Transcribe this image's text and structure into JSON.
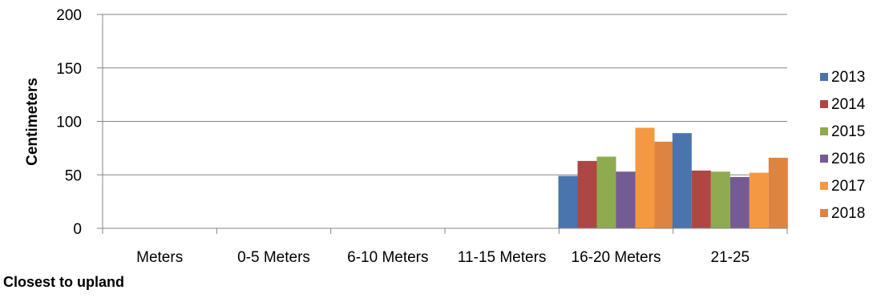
{
  "chart_data": {
    "type": "bar",
    "ylabel": "Centimeters",
    "ylim": [
      0,
      200
    ],
    "yticks": [
      0,
      50,
      100,
      150,
      200
    ],
    "grid": true,
    "legend_position": "right",
    "categories": [
      "Meters",
      "0-5 Meters",
      "6-10 Meters",
      "11-15 Meters",
      "16-20 Meters",
      "21-25"
    ],
    "series": [
      {
        "name": "2013",
        "color": "#4a74ad",
        "values": [
          null,
          null,
          null,
          null,
          49,
          89
        ]
      },
      {
        "name": "2014",
        "color": "#ae4744",
        "values": [
          null,
          null,
          null,
          null,
          63,
          54
        ]
      },
      {
        "name": "2015",
        "color": "#8eab50",
        "values": [
          null,
          null,
          null,
          null,
          67,
          53
        ]
      },
      {
        "name": "2016",
        "color": "#745b94",
        "values": [
          null,
          null,
          null,
          null,
          53,
          48
        ]
      },
      {
        "name": "2017",
        "color": "#f59842",
        "values": [
          null,
          null,
          null,
          null,
          94,
          52
        ]
      },
      {
        "name": "2018",
        "color": "#dd8440",
        "values": [
          null,
          null,
          null,
          null,
          81,
          66
        ]
      }
    ]
  },
  "annotations": {
    "caption": "Closest to upland"
  }
}
